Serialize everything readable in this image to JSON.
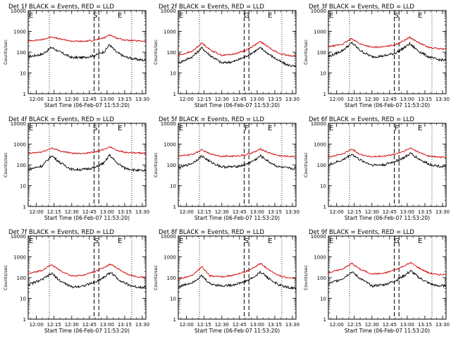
{
  "window": {
    "title": ""
  },
  "chart_data": [
    {
      "type": "line",
      "title": "Det 1f BLACK = Events, RED = LLD",
      "xlabel": "Start Time (06-Feb-07 11:53:20)",
      "ylabel": "Counts/sec",
      "x_ticks": [
        "12:00",
        "12:15",
        "12:30",
        "12:45",
        "13:00",
        "13:15",
        "13:30"
      ],
      "y_ticks": [
        "1",
        "10",
        "100",
        "1000",
        "10000"
      ],
      "ylim": [
        1,
        10000
      ],
      "y_scale": "log",
      "x_range": [
        "11:53",
        "13:33"
      ],
      "markers": [
        {
          "label": "E",
          "time": "11:53"
        },
        {
          "label": "S",
          "time": "12:50"
        },
        {
          "label": "E",
          "time": "13:11"
        }
      ],
      "series": [
        {
          "name": "Events",
          "color": "#000000",
          "t": [
            "11:53",
            "12:05",
            "12:13",
            "12:20",
            "12:30",
            "12:40",
            "12:50",
            "12:58",
            "13:02",
            "13:08",
            "13:15",
            "13:25",
            "13:33"
          ],
          "values": [
            60,
            80,
            170,
            100,
            55,
            55,
            70,
            110,
            230,
            100,
            60,
            45,
            40
          ]
        },
        {
          "name": "LLD",
          "color": "#d00000",
          "t": [
            "11:53",
            "12:05",
            "12:13",
            "12:20",
            "12:30",
            "12:40",
            "12:50",
            "12:58",
            "13:02",
            "13:08",
            "13:15",
            "13:25",
            "13:33"
          ],
          "values": [
            350,
            400,
            550,
            420,
            340,
            330,
            380,
            500,
            700,
            480,
            380,
            350,
            340
          ]
        }
      ]
    },
    {
      "type": "line",
      "title": "Det 2f BLACK = Events, RED = LLD",
      "xlabel": "Start Time (06-Feb-07 11:53:20)",
      "ylabel": "Counts/sec",
      "x_ticks": [
        "12:00",
        "12:15",
        "12:30",
        "12:45",
        "13:00",
        "13:15",
        "13:30"
      ],
      "y_ticks": [
        "1",
        "10",
        "100",
        "1000",
        "10000"
      ],
      "ylim": [
        1,
        10000
      ],
      "y_scale": "log",
      "x_range": [
        "11:53",
        "13:33"
      ],
      "markers": [
        {
          "label": "E",
          "time": "11:53"
        },
        {
          "label": "G",
          "time": "12:51"
        },
        {
          "label": "E",
          "time": "13:11"
        }
      ],
      "series": [
        {
          "name": "Events",
          "color": "#000000",
          "t": [
            "11:53",
            "12:05",
            "12:13",
            "12:20",
            "12:30",
            "12:40",
            "12:50",
            "12:58",
            "13:03",
            "13:10",
            "13:18",
            "13:25",
            "13:33"
          ],
          "values": [
            30,
            60,
            160,
            70,
            30,
            35,
            60,
            110,
            160,
            80,
            40,
            25,
            20
          ]
        },
        {
          "name": "LLD",
          "color": "#d00000",
          "t": [
            "11:53",
            "12:05",
            "12:13",
            "12:20",
            "12:30",
            "12:40",
            "12:50",
            "12:58",
            "13:03",
            "13:10",
            "13:18",
            "13:25",
            "13:33"
          ],
          "values": [
            70,
            110,
            280,
            130,
            70,
            80,
            120,
            220,
            320,
            170,
            90,
            70,
            65
          ]
        }
      ]
    },
    {
      "type": "line",
      "title": "Det 3f BLACK = Events, RED = LLD",
      "xlabel": "Start Time (06-Feb-07 11:53:20)",
      "ylabel": "Counts/sec",
      "x_ticks": [
        "12:00",
        "12:15",
        "12:30",
        "12:45",
        "13:00",
        "13:15",
        "13:30"
      ],
      "y_ticks": [
        "1",
        "10",
        "100",
        "1000",
        "10000"
      ],
      "ylim": [
        1,
        10000
      ],
      "y_scale": "log",
      "x_range": [
        "11:53",
        "13:33"
      ],
      "markers": [
        {
          "label": "E",
          "time": "11:53"
        },
        {
          "label": "S",
          "time": "12:51"
        },
        {
          "label": "E",
          "time": "13:11"
        }
      ],
      "series": [
        {
          "name": "Events",
          "color": "#000000",
          "t": [
            "11:53",
            "12:05",
            "12:13",
            "12:20",
            "12:30",
            "12:40",
            "12:50",
            "12:58",
            "13:02",
            "13:10",
            "13:18",
            "13:25",
            "13:33"
          ],
          "values": [
            60,
            120,
            280,
            120,
            60,
            65,
            90,
            170,
            250,
            110,
            60,
            45,
            40
          ]
        },
        {
          "name": "LLD",
          "color": "#d00000",
          "t": [
            "11:53",
            "12:05",
            "12:13",
            "12:20",
            "12:30",
            "12:40",
            "12:50",
            "12:58",
            "13:02",
            "13:10",
            "13:18",
            "13:25",
            "13:33"
          ],
          "values": [
            180,
            240,
            450,
            250,
            170,
            180,
            230,
            380,
            520,
            280,
            170,
            150,
            140
          ]
        }
      ]
    },
    {
      "type": "line",
      "title": "Det 4f BLACK = Events, RED = LLD",
      "xlabel": "Start Time (06-Feb-07 11:53:20)",
      "ylabel": "Counts/sec",
      "x_ticks": [
        "12:00",
        "12:15",
        "12:30",
        "12:45",
        "13:00",
        "13:15",
        "13:30"
      ],
      "y_ticks": [
        "1",
        "10",
        "100",
        "1000",
        "10000"
      ],
      "ylim": [
        1,
        10000
      ],
      "y_scale": "log",
      "x_range": [
        "11:53",
        "13:33"
      ],
      "markers": [
        {
          "label": "E",
          "time": "11:53"
        },
        {
          "label": "S",
          "time": "12:50"
        },
        {
          "label": "E",
          "time": "13:11"
        }
      ],
      "series": [
        {
          "name": "Events",
          "color": "#000000",
          "t": [
            "11:53",
            "12:05",
            "12:13",
            "12:20",
            "12:30",
            "12:40",
            "12:50",
            "12:58",
            "13:02",
            "13:08",
            "13:15",
            "13:25",
            "13:33"
          ],
          "values": [
            60,
            90,
            280,
            130,
            60,
            60,
            75,
            130,
            300,
            130,
            70,
            55,
            50
          ]
        },
        {
          "name": "LLD",
          "color": "#d00000",
          "t": [
            "11:53",
            "12:05",
            "12:13",
            "12:20",
            "12:30",
            "12:40",
            "12:50",
            "12:58",
            "13:02",
            "13:08",
            "13:15",
            "13:25",
            "13:33"
          ],
          "values": [
            350,
            420,
            650,
            470,
            360,
            360,
            420,
            560,
            750,
            520,
            400,
            370,
            360
          ]
        }
      ]
    },
    {
      "type": "line",
      "title": "Det 5f BLACK = Events, RED = LLD",
      "xlabel": "Start Time (06-Feb-07 11:53:20)",
      "ylabel": "Counts/sec",
      "x_ticks": [
        "12:00",
        "12:15",
        "12:30",
        "12:45",
        "13:00",
        "13:15",
        "13:30"
      ],
      "y_ticks": [
        "1",
        "10",
        "100",
        "1000",
        "10000"
      ],
      "ylim": [
        1,
        10000
      ],
      "y_scale": "log",
      "x_range": [
        "11:53",
        "13:33"
      ],
      "markers": [
        {
          "label": "E",
          "time": "11:53"
        },
        {
          "label": "F",
          "time": "12:51"
        },
        {
          "label": "E",
          "time": "13:11"
        }
      ],
      "series": [
        {
          "name": "Events",
          "color": "#000000",
          "t": [
            "11:53",
            "12:05",
            "12:13",
            "12:20",
            "12:30",
            "12:40",
            "12:50",
            "12:58",
            "13:03",
            "13:10",
            "13:18",
            "13:25",
            "13:33"
          ],
          "values": [
            70,
            120,
            270,
            140,
            80,
            80,
            100,
            170,
            270,
            140,
            80,
            70,
            65
          ]
        },
        {
          "name": "LLD",
          "color": "#d00000",
          "t": [
            "11:53",
            "12:05",
            "12:13",
            "12:20",
            "12:30",
            "12:40",
            "12:50",
            "12:58",
            "13:03",
            "13:10",
            "13:18",
            "13:25",
            "13:33"
          ],
          "values": [
            260,
            320,
            520,
            340,
            260,
            260,
            300,
            420,
            580,
            380,
            280,
            260,
            250
          ]
        }
      ]
    },
    {
      "type": "line",
      "title": "Det 6f BLACK = Events, RED = LLD",
      "xlabel": "Start Time (06-Feb-07 11:53:20)",
      "ylabel": "Counts/sec",
      "x_ticks": [
        "12:00",
        "12:15",
        "12:30",
        "12:45",
        "13:00",
        "13:15",
        "13:30"
      ],
      "y_ticks": [
        "1",
        "10",
        "100",
        "1000",
        "10000"
      ],
      "ylim": [
        1,
        10000
      ],
      "y_scale": "log",
      "x_range": [
        "11:53",
        "13:33"
      ],
      "markers": [
        {
          "label": "E",
          "time": "11:53"
        },
        {
          "label": "F",
          "time": "12:51"
        },
        {
          "label": "E",
          "time": "13:11"
        }
      ],
      "series": [
        {
          "name": "Events",
          "color": "#000000",
          "t": [
            "11:53",
            "12:05",
            "12:13",
            "12:20",
            "12:30",
            "12:40",
            "12:50",
            "12:58",
            "13:03",
            "13:10",
            "13:18",
            "13:25",
            "13:33"
          ],
          "values": [
            100,
            170,
            330,
            170,
            100,
            100,
            150,
            230,
            360,
            190,
            110,
            90,
            80
          ]
        },
        {
          "name": "LLD",
          "color": "#d00000",
          "t": [
            "11:53",
            "12:05",
            "12:13",
            "12:20",
            "12:30",
            "12:40",
            "12:50",
            "12:58",
            "13:03",
            "13:10",
            "13:18",
            "13:25",
            "13:33"
          ],
          "values": [
            240,
            330,
            580,
            320,
            240,
            260,
            330,
            470,
            650,
            400,
            270,
            240,
            230
          ]
        }
      ]
    },
    {
      "type": "line",
      "title": "Det 7f BLACK = Events, RED = LLD",
      "xlabel": "Start Time (06-Feb-07 11:53:20)",
      "ylabel": "Counts/sec",
      "x_ticks": [
        "12:00",
        "12:15",
        "12:30",
        "12:45",
        "13:00",
        "13:15",
        "13:30"
      ],
      "y_ticks": [
        "1",
        "10",
        "100",
        "1000",
        "10000"
      ],
      "ylim": [
        1,
        10000
      ],
      "y_scale": "log",
      "x_range": [
        "11:53",
        "13:33"
      ],
      "markers": [
        {
          "label": "E",
          "time": "11:53"
        },
        {
          "label": "S",
          "time": "12:51"
        },
        {
          "label": "E",
          "time": "13:11"
        }
      ],
      "series": [
        {
          "name": "Events",
          "color": "#000000",
          "t": [
            "11:53",
            "12:05",
            "12:13",
            "12:20",
            "12:30",
            "12:40",
            "12:50",
            "12:58",
            "13:03",
            "13:10",
            "13:18",
            "13:25",
            "13:33"
          ],
          "values": [
            45,
            80,
            160,
            70,
            35,
            40,
            60,
            110,
            180,
            80,
            45,
            35,
            35
          ]
        },
        {
          "name": "LLD",
          "color": "#d00000",
          "t": [
            "11:53",
            "12:05",
            "12:13",
            "12:20",
            "12:30",
            "12:40",
            "12:50",
            "12:58",
            "13:03",
            "13:10",
            "13:18",
            "13:25",
            "13:33"
          ],
          "values": [
            150,
            230,
            420,
            220,
            120,
            130,
            200,
            320,
            450,
            250,
            140,
            110,
            105
          ]
        }
      ]
    },
    {
      "type": "line",
      "title": "Det 8f BLACK = Events, RED = LLD",
      "xlabel": "Start Time (06-Feb-07 11:53:20)",
      "ylabel": "Counts/sec",
      "x_ticks": [
        "12:00",
        "12:15",
        "12:30",
        "12:45",
        "13:00",
        "13:15",
        "13:30"
      ],
      "y_ticks": [
        "1",
        "10",
        "100",
        "1000",
        "10000"
      ],
      "ylim": [
        1,
        10000
      ],
      "y_scale": "log",
      "x_range": [
        "11:53",
        "13:33"
      ],
      "markers": [
        {
          "label": "E",
          "time": "11:53"
        },
        {
          "label": "S",
          "time": "12:51"
        },
        {
          "label": "E",
          "time": "13:11"
        }
      ],
      "series": [
        {
          "name": "Events",
          "color": "#000000",
          "t": [
            "11:53",
            "12:05",
            "12:13",
            "12:20",
            "12:30",
            "12:40",
            "12:50",
            "12:58",
            "13:03",
            "13:10",
            "13:18",
            "13:25",
            "13:33"
          ],
          "values": [
            35,
            60,
            120,
            50,
            40,
            45,
            65,
            110,
            190,
            90,
            45,
            35,
            30
          ]
        },
        {
          "name": "LLD",
          "color": "#d00000",
          "t": [
            "11:53",
            "12:05",
            "12:13",
            "12:20",
            "12:30",
            "12:40",
            "12:50",
            "12:58",
            "13:03",
            "13:10",
            "13:18",
            "13:25",
            "13:33"
          ],
          "values": [
            80,
            130,
            330,
            120,
            110,
            130,
            190,
            320,
            480,
            240,
            130,
            100,
            90
          ]
        }
      ]
    },
    {
      "type": "line",
      "title": "Det 9f BLACK = Events, RED = LLD",
      "xlabel": "Start Time (06-Feb-07 11:53:20)",
      "ylabel": "Counts/sec",
      "x_ticks": [
        "12:00",
        "12:15",
        "12:30",
        "12:45",
        "13:00",
        "13:15",
        "13:30"
      ],
      "y_ticks": [
        "1",
        "10",
        "100",
        "1000",
        "10000"
      ],
      "ylim": [
        1,
        10000
      ],
      "y_scale": "log",
      "x_range": [
        "11:53",
        "13:33"
      ],
      "markers": [
        {
          "label": "E",
          "time": "11:53"
        },
        {
          "label": "G",
          "time": "12:51"
        },
        {
          "label": "E",
          "time": "13:11"
        }
      ],
      "series": [
        {
          "name": "Events",
          "color": "#000000",
          "t": [
            "11:53",
            "12:05",
            "12:13",
            "12:20",
            "12:30",
            "12:40",
            "12:50",
            "12:58",
            "13:03",
            "13:10",
            "13:18",
            "13:25",
            "13:33"
          ],
          "values": [
            50,
            90,
            190,
            90,
            40,
            45,
            70,
            130,
            210,
            100,
            55,
            40,
            40
          ]
        },
        {
          "name": "LLD",
          "color": "#d00000",
          "t": [
            "11:53",
            "12:05",
            "12:13",
            "12:20",
            "12:30",
            "12:40",
            "12:50",
            "12:58",
            "13:03",
            "13:10",
            "13:18",
            "13:25",
            "13:33"
          ],
          "values": [
            170,
            260,
            480,
            250,
            150,
            160,
            240,
            380,
            520,
            290,
            170,
            140,
            140
          ]
        }
      ]
    }
  ]
}
